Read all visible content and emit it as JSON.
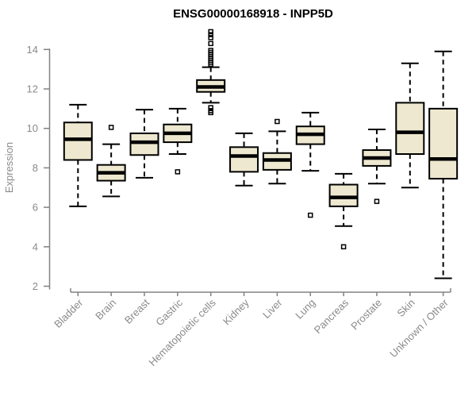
{
  "chart_data": {
    "type": "box",
    "title": "ENSG00000168918 - INPP5D",
    "xlabel": "",
    "ylabel": "Expression",
    "ylim": [
      2,
      14
    ],
    "yticks": [
      2,
      4,
      6,
      8,
      10,
      12,
      14
    ],
    "grid": false,
    "legend": false,
    "categories": [
      "Bladder",
      "Brain",
      "Breast",
      "Gastric",
      "Hematopoietic cells",
      "Kidney",
      "Liver",
      "Lung",
      "Pancreas",
      "Prostate",
      "Skin",
      "Unknown / Other"
    ],
    "boxes": [
      {
        "label": "Bladder",
        "whislo": 6.05,
        "q1": 8.4,
        "med": 9.45,
        "q3": 10.3,
        "whishi": 11.2,
        "outliers": []
      },
      {
        "label": "Brain",
        "whislo": 6.55,
        "q1": 7.35,
        "med": 7.75,
        "q3": 8.15,
        "whishi": 9.2,
        "outliers": [
          10.05
        ]
      },
      {
        "label": "Breast",
        "whislo": 7.5,
        "q1": 8.65,
        "med": 9.3,
        "q3": 9.75,
        "whishi": 10.95,
        "outliers": []
      },
      {
        "label": "Gastric",
        "whislo": 8.7,
        "q1": 9.3,
        "med": 9.75,
        "q3": 10.2,
        "whishi": 11.0,
        "outliers": [
          7.8
        ]
      },
      {
        "label": "Hematopoietic cells",
        "whislo": 11.3,
        "q1": 11.85,
        "med": 12.1,
        "q3": 12.45,
        "whishi": 13.1,
        "outliers": [
          14.9,
          14.75,
          14.6,
          14.3,
          13.95,
          13.85,
          13.75,
          13.65,
          13.55,
          13.45,
          13.35,
          13.25,
          11.05,
          10.9,
          10.8
        ]
      },
      {
        "label": "Kidney",
        "whislo": 7.1,
        "q1": 7.8,
        "med": 8.6,
        "q3": 9.05,
        "whishi": 9.75,
        "outliers": []
      },
      {
        "label": "Liver",
        "whislo": 7.2,
        "q1": 7.9,
        "med": 8.4,
        "q3": 8.75,
        "whishi": 9.85,
        "outliers": [
          10.35
        ]
      },
      {
        "label": "Lung",
        "whislo": 7.85,
        "q1": 9.2,
        "med": 9.7,
        "q3": 10.1,
        "whishi": 10.8,
        "outliers": [
          5.6
        ]
      },
      {
        "label": "Pancreas",
        "whislo": 5.05,
        "q1": 6.05,
        "med": 6.5,
        "q3": 7.15,
        "whishi": 7.7,
        "outliers": [
          4.0
        ]
      },
      {
        "label": "Prostate",
        "whislo": 7.2,
        "q1": 8.1,
        "med": 8.5,
        "q3": 8.9,
        "whishi": 9.95,
        "outliers": [
          6.3
        ]
      },
      {
        "label": "Skin",
        "whislo": 7.0,
        "q1": 8.7,
        "med": 9.8,
        "q3": 11.3,
        "whishi": 13.3,
        "outliers": []
      },
      {
        "label": "Unknown / Other",
        "whislo": 2.4,
        "q1": 7.45,
        "med": 8.45,
        "q3": 11.0,
        "whishi": 13.9,
        "outliers": []
      }
    ],
    "colors": {
      "background": "#ffffff",
      "box_fill": "#ede8cf",
      "box_stroke": "#000000",
      "median": "#000000",
      "whisker": "#000000",
      "outlier": "#000000",
      "axis": "#828282",
      "tick_label": "#8a8a8a",
      "title": "#000000"
    }
  }
}
